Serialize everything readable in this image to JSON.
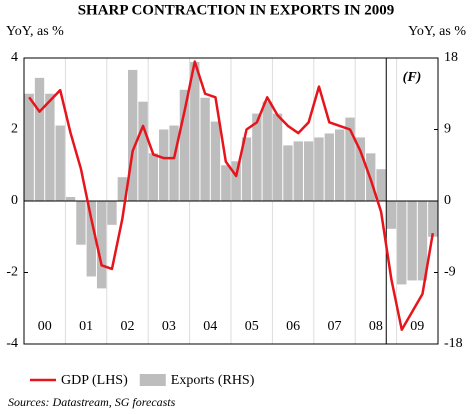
{
  "chart_data": {
    "type": "combo",
    "title": "SHARP CONTRACTION IN EXPORTS IN 2009",
    "ylabel": "YoY, as %",
    "y2label": "YoY, as %",
    "annotation": "(F)",
    "source": "Sources: Datastream, SG forecasts",
    "categories": [
      null,
      "00",
      null,
      null,
      null,
      "01",
      null,
      null,
      null,
      "02",
      null,
      null,
      null,
      "03",
      null,
      null,
      null,
      "04",
      null,
      null,
      null,
      "05",
      null,
      null,
      null,
      "06",
      null,
      null,
      null,
      "07",
      null,
      null,
      null,
      "08",
      null,
      null,
      null,
      "09",
      null,
      null
    ],
    "ylim": [
      -4,
      4
    ],
    "yticks": [
      -4,
      -2,
      0,
      2,
      4
    ],
    "y2lim": [
      -18,
      18
    ],
    "y2ticks": [
      -18,
      -9,
      0,
      9,
      18
    ],
    "series": [
      {
        "name": "Exports (RHS)",
        "type": "bar",
        "axis": "y2",
        "color": "#bdbdbd",
        "values": [
          13.5,
          15.5,
          13.5,
          9.5,
          0.5,
          -5.5,
          -9.5,
          -11,
          -3,
          3,
          16.5,
          12.5,
          6,
          9,
          9.5,
          14,
          17.5,
          13,
          10,
          4.5,
          5,
          8,
          11,
          12.5,
          11,
          7,
          7.5,
          7.5,
          8,
          8.5,
          9,
          10.5,
          8,
          6,
          4,
          -3.5,
          -10.5,
          -10,
          -10,
          -4.5
        ]
      },
      {
        "name": "GDP (LHS)",
        "type": "line",
        "axis": "y",
        "color": "#e8141c",
        "values": [
          2.9,
          2.5,
          2.8,
          3.1,
          1.9,
          0.9,
          -0.5,
          -1.8,
          -1.9,
          -0.5,
          1.4,
          2.1,
          1.3,
          1.2,
          1.2,
          2.5,
          3.9,
          3.0,
          2.9,
          1.1,
          0.7,
          2.0,
          2.2,
          2.9,
          2.4,
          2.1,
          1.9,
          2.2,
          3.2,
          2.2,
          2.1,
          2.0,
          1.4,
          0.6,
          -0.3,
          -2.2,
          -3.6,
          -3.1,
          -2.6,
          -0.9
        ]
      }
    ]
  }
}
